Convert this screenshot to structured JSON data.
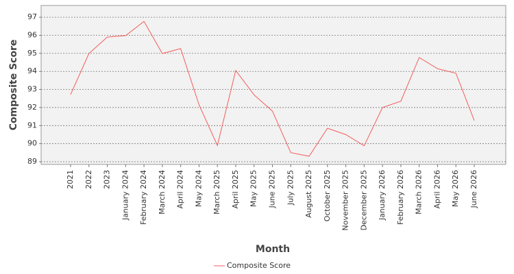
{
  "chart_data": {
    "type": "line",
    "x_label": "Month",
    "y_label": "Composite Score",
    "categories": [
      "2021",
      "2022",
      "2023",
      "January 2024",
      "February 2024",
      "March 2024",
      "April 2024",
      "May 2024",
      "March 2025",
      "April 2025",
      "May 2025",
      "June 2025",
      "July 2025",
      "August 2025",
      "October 2025",
      "November 2025",
      "December 2025",
      "January 2026",
      "February 2026",
      "March 2026",
      "April 2026",
      "May 2026",
      "June 2026"
    ],
    "series": [
      {
        "name": "Composite Score",
        "color": "#f45b5b",
        "values": [
          92.72,
          94.99,
          95.9,
          95.98,
          96.77,
          94.99,
          95.26,
          92.15,
          89.9,
          94.05,
          92.7,
          91.8,
          89.5,
          89.3,
          90.85,
          90.5,
          89.88,
          92.0,
          92.35,
          94.77,
          94.15,
          93.9,
          91.28
        ]
      }
    ],
    "ylim": [
      88.85,
      97.65
    ],
    "yticks": [
      89,
      90,
      91,
      92,
      93,
      94,
      95,
      96,
      97
    ],
    "grid": true,
    "legend": "bottom"
  }
}
